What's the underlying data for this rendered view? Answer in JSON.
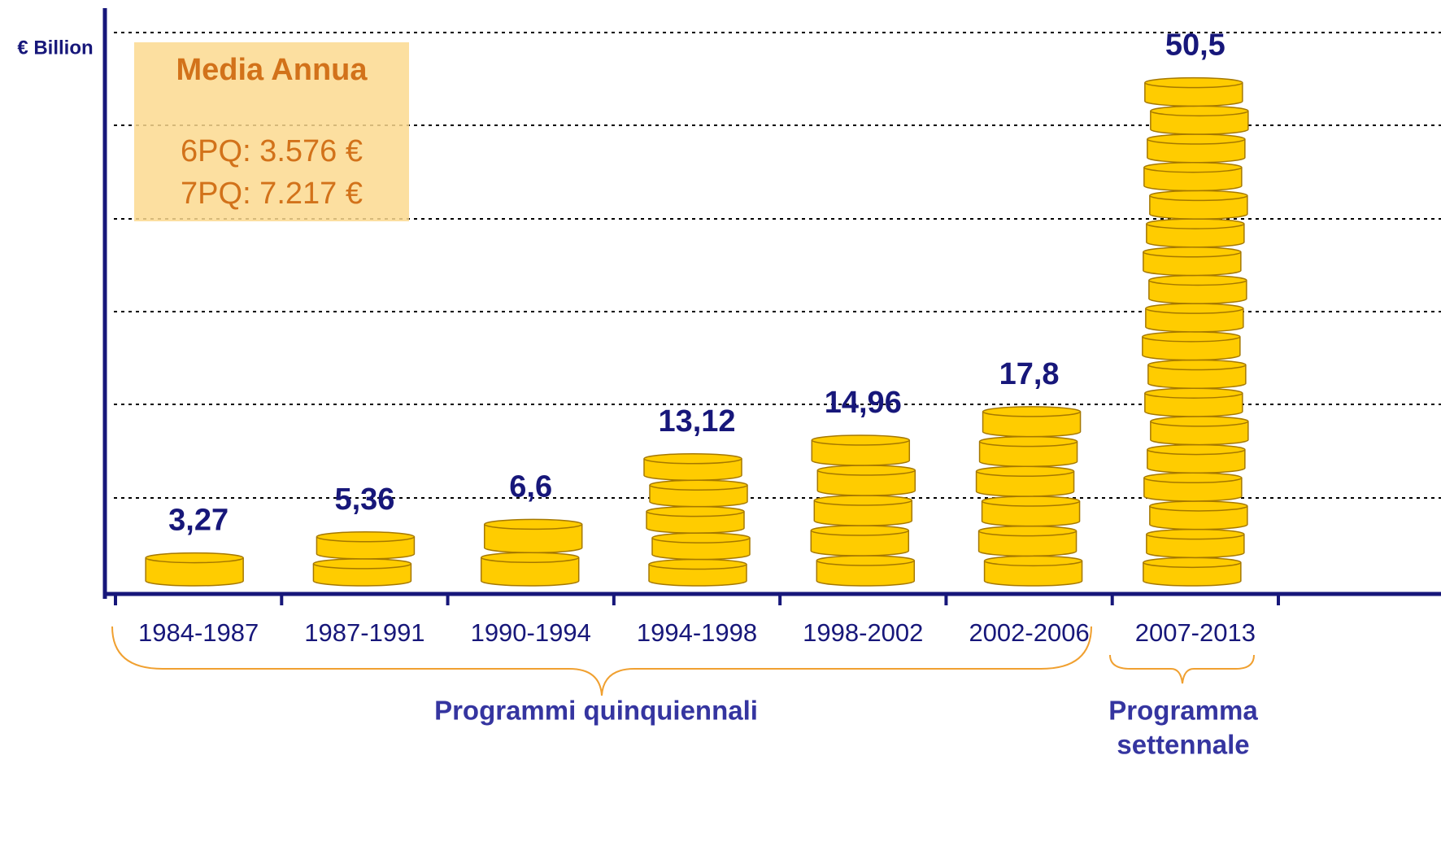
{
  "chart_data": {
    "type": "bar",
    "y_label": "€ Billion",
    "categories": [
      "1984-1987",
      "1987-1991",
      "1990-1994",
      "1994-1998",
      "1998-2002",
      "2002-2006",
      "2007-2013"
    ],
    "values": [
      3.27,
      5.36,
      6.6,
      13.12,
      14.96,
      17.8,
      50.5
    ],
    "value_labels": [
      "3,27",
      "5,36",
      "6,6",
      "13,12",
      "14,96",
      "17,8",
      "50,5"
    ],
    "color": "#ffcc00",
    "ylim": [
      0,
      55
    ],
    "grid": true,
    "annotations": {
      "box_title": "Media Annua",
      "box_lines": [
        "6PQ: 3.576 €",
        "7PQ: 7.217 €"
      ],
      "group_1": "Programmi quinquiennali",
      "group_2": [
        "Programma",
        "settennale"
      ]
    }
  }
}
